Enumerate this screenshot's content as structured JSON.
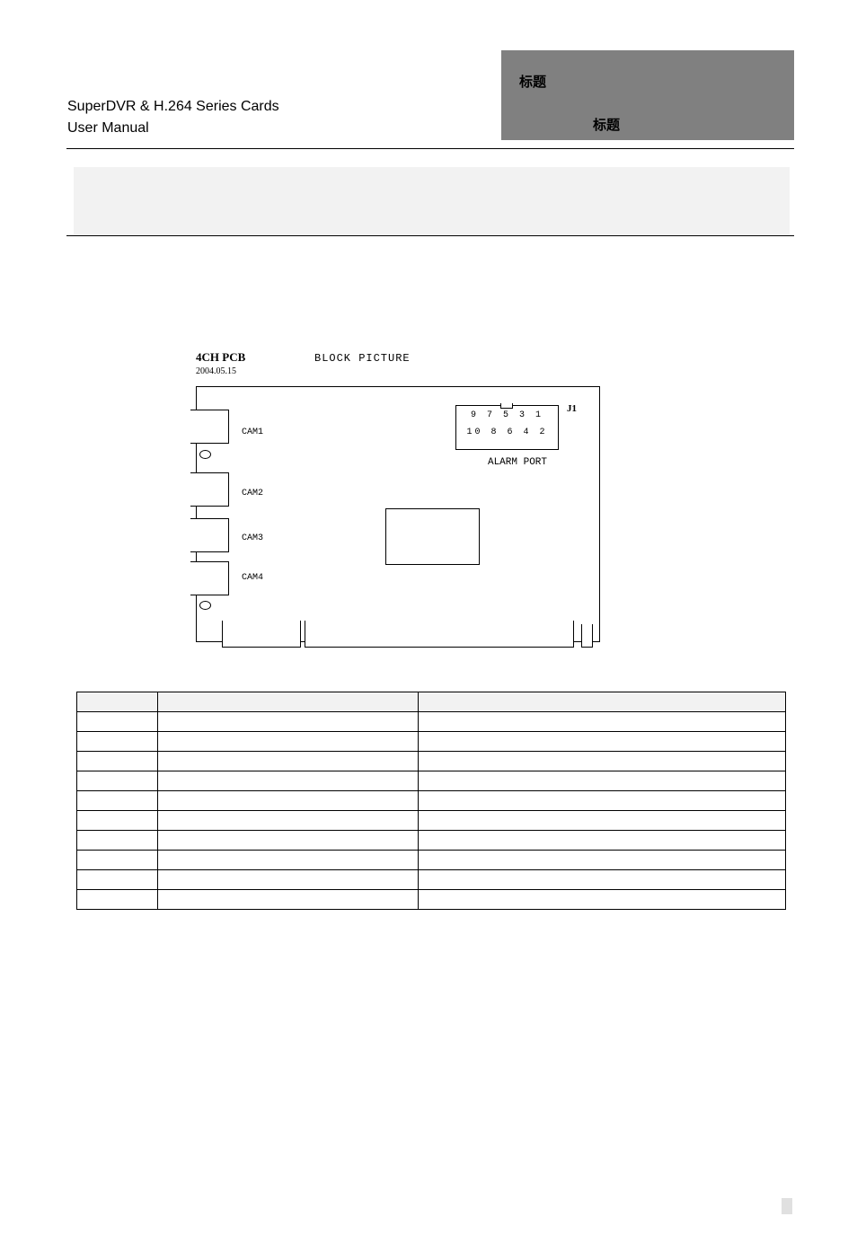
{
  "header": {
    "label1": "标题",
    "label2": "标题",
    "title": "SuperDVR & H.264 Series Cards",
    "subtitle": "User Manual"
  },
  "pcb": {
    "title": "4CH PCB",
    "date": "2004.05.15",
    "blockPictureLabel": "BLOCK PICTURE",
    "cam1": "CAM1",
    "cam2": "CAM2",
    "cam3": "CAM3",
    "cam4": "CAM4",
    "alarmRow1": "9 7 5 3 1",
    "alarmRow2": "10 8 6 4 2",
    "alarmPortLabel": "ALARM PORT",
    "j1Label": "J1"
  },
  "pinTable": {
    "headers": [
      "",
      "",
      ""
    ],
    "rows": [
      [
        "",
        "",
        ""
      ],
      [
        "",
        "",
        ""
      ],
      [
        "",
        "",
        ""
      ],
      [
        "",
        "",
        ""
      ],
      [
        "",
        "",
        ""
      ],
      [
        "",
        "",
        ""
      ],
      [
        "",
        "",
        ""
      ],
      [
        "",
        "",
        ""
      ],
      [
        "",
        "",
        ""
      ],
      [
        "",
        "",
        ""
      ]
    ]
  },
  "colors": {
    "headerGrey": "#808080",
    "lightGrey": "#f2f2f2",
    "footerGrey": "#e0e0e0"
  }
}
